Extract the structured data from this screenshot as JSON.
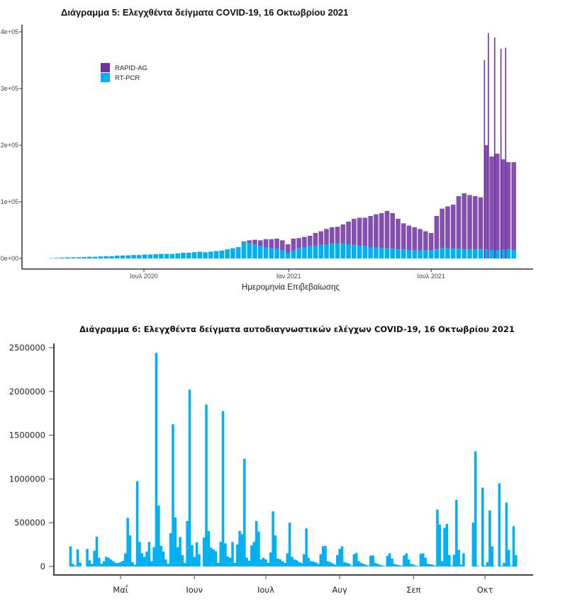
{
  "chart_data": [
    {
      "type": "bar",
      "stacked": true,
      "title": "Διάγραμμα 5: Ελεγχθέντα δείγματα COVID-19, 16 Οκτωβρίου 2021",
      "xlabel": "Ημερομηνία Επιβεβαίωσης",
      "ylabel": "",
      "ylim": [
        0,
        400000
      ],
      "yticks": [
        "0e+00",
        "1e+05",
        "2e+05",
        "3e+05",
        "4e+05"
      ],
      "ytick_values": [
        0,
        100000,
        200000,
        300000,
        400000
      ],
      "xticks": [
        "Ιουλ 2020",
        "Ιαν 2021",
        "Ιουλ 2021"
      ],
      "xtick_dates": [
        "2020-07-01",
        "2021-01-01",
        "2021-07-01"
      ],
      "legend_position": "top-left",
      "grid": false,
      "colors": {
        "RAPID-AG": "#7030a0",
        "RT-PCR": "#00b0f0",
        "axis": "#333333"
      },
      "x": [
        "2020-03-02",
        "2020-03-09",
        "2020-03-16",
        "2020-03-23",
        "2020-03-30",
        "2020-04-06",
        "2020-04-13",
        "2020-04-20",
        "2020-04-27",
        "2020-05-04",
        "2020-05-11",
        "2020-05-18",
        "2020-05-25",
        "2020-06-01",
        "2020-06-08",
        "2020-06-15",
        "2020-06-22",
        "2020-06-29",
        "2020-07-06",
        "2020-07-13",
        "2020-07-20",
        "2020-07-27",
        "2020-08-03",
        "2020-08-10",
        "2020-08-17",
        "2020-08-24",
        "2020-08-31",
        "2020-09-07",
        "2020-09-14",
        "2020-09-21",
        "2020-09-28",
        "2020-10-05",
        "2020-10-12",
        "2020-10-19",
        "2020-10-26",
        "2020-11-02",
        "2020-11-09",
        "2020-11-16",
        "2020-11-23",
        "2020-11-30",
        "2020-12-07",
        "2020-12-14",
        "2020-12-21",
        "2020-12-28",
        "2021-01-04",
        "2021-01-11",
        "2021-01-18",
        "2021-01-25",
        "2021-02-01",
        "2021-02-08",
        "2021-02-15",
        "2021-02-22",
        "2021-03-01",
        "2021-03-08",
        "2021-03-15",
        "2021-03-22",
        "2021-03-29",
        "2021-04-05",
        "2021-04-12",
        "2021-04-19",
        "2021-04-26",
        "2021-05-03",
        "2021-05-10",
        "2021-05-17",
        "2021-05-24",
        "2021-05-31",
        "2021-06-07",
        "2021-06-14",
        "2021-06-21",
        "2021-06-28",
        "2021-07-05",
        "2021-07-12",
        "2021-07-19",
        "2021-07-26",
        "2021-08-02",
        "2021-08-09",
        "2021-08-16",
        "2021-08-23",
        "2021-08-30",
        "2021-09-06",
        "2021-09-13",
        "2021-09-20",
        "2021-09-27",
        "2021-10-04",
        "2021-10-11"
      ],
      "series": [
        {
          "name": "RT-PCR",
          "values": [
            500,
            1000,
            1500,
            2000,
            2000,
            2000,
            2500,
            3000,
            3000,
            3500,
            4000,
            4000,
            5000,
            5000,
            5500,
            6000,
            6000,
            7000,
            7000,
            7500,
            8000,
            8000,
            8000,
            9000,
            10000,
            10000,
            11000,
            12000,
            11000,
            12000,
            13000,
            14000,
            16000,
            18000,
            20000,
            28000,
            27000,
            25000,
            22000,
            20000,
            18000,
            17000,
            15000,
            10000,
            14000,
            18000,
            20000,
            22000,
            22000,
            24000,
            25000,
            26000,
            27000,
            26000,
            25000,
            24000,
            22000,
            22000,
            20000,
            20000,
            18000,
            18000,
            17000,
            16000,
            16000,
            15000,
            14000,
            14000,
            15000,
            14000,
            16000,
            18000,
            18000,
            17000,
            17000,
            16000,
            16000,
            16000,
            16000,
            16000,
            15000,
            15000,
            16000,
            16000,
            15000
          ]
        },
        {
          "name": "RAPID-AG",
          "values": [
            0,
            0,
            0,
            0,
            0,
            0,
            0,
            0,
            0,
            0,
            0,
            0,
            0,
            0,
            0,
            0,
            0,
            0,
            0,
            0,
            0,
            0,
            0,
            0,
            0,
            0,
            0,
            0,
            0,
            0,
            0,
            0,
            0,
            0,
            0,
            2000,
            5000,
            8000,
            10000,
            14000,
            16000,
            18000,
            17000,
            15000,
            21000,
            18000,
            18000,
            18000,
            23000,
            24000,
            27000,
            29000,
            29000,
            34000,
            40000,
            46000,
            50000,
            50000,
            55000,
            58000,
            62000,
            66000,
            63000,
            54000,
            46000,
            43000,
            41000,
            38000,
            33000,
            31000,
            59000,
            70000,
            74000,
            78000,
            93000,
            99000,
            96000,
            94000,
            92000,
            184000,
            165000,
            170000,
            159000,
            154000,
            155000
          ]
        }
      ],
      "daily_peaks_total": [
        {
          "date": "2021-09-06",
          "value": 350000
        },
        {
          "date": "2021-09-11",
          "value": 398000
        },
        {
          "date": "2021-09-19",
          "value": 390000
        },
        {
          "date": "2021-09-27",
          "value": 370000
        },
        {
          "date": "2021-10-03",
          "value": 372000
        }
      ]
    },
    {
      "type": "bar",
      "title": "Διάγραμμα 6: Ελεγχθέντα δείγματα αυτοδιαγνωστικών ελέγχων COVID-19, 16 Οκτωβρίου 2021",
      "xlabel": "",
      "ylabel": "",
      "ylim": [
        0,
        2500000
      ],
      "yticks": [
        "0",
        "500000",
        "1000000",
        "1500000",
        "2000000",
        "2500000"
      ],
      "ytick_values": [
        0,
        500000,
        1000000,
        1500000,
        2000000,
        2500000
      ],
      "xticks": [
        "Μαΐ",
        "Ιουν",
        "Ιουλ",
        "Αυγ",
        "Σεπ",
        "Οκτ"
      ],
      "xtick_dates": [
        "2021-05-01",
        "2021-06-01",
        "2021-07-01",
        "2021-08-01",
        "2021-09-01",
        "2021-10-01"
      ],
      "grid": false,
      "colors": {
        "bar": "#00b0f0",
        "axis": "#444444"
      },
      "x": [
        "2021-04-10",
        "2021-04-11",
        "2021-04-12",
        "2021-04-13",
        "2021-04-14",
        "2021-04-15",
        "2021-04-16",
        "2021-04-17",
        "2021-04-18",
        "2021-04-19",
        "2021-04-20",
        "2021-04-21",
        "2021-04-22",
        "2021-04-23",
        "2021-04-24",
        "2021-04-25",
        "2021-04-26",
        "2021-04-27",
        "2021-04-28",
        "2021-04-29",
        "2021-04-30",
        "2021-05-01",
        "2021-05-02",
        "2021-05-03",
        "2021-05-04",
        "2021-05-05",
        "2021-05-06",
        "2021-05-07",
        "2021-05-08",
        "2021-05-09",
        "2021-05-10",
        "2021-05-11",
        "2021-05-12",
        "2021-05-13",
        "2021-05-14",
        "2021-05-15",
        "2021-05-16",
        "2021-05-17",
        "2021-05-18",
        "2021-05-19",
        "2021-05-20",
        "2021-05-21",
        "2021-05-22",
        "2021-05-23",
        "2021-05-24",
        "2021-05-25",
        "2021-05-26",
        "2021-05-27",
        "2021-05-28",
        "2021-05-29",
        "2021-05-30",
        "2021-05-31",
        "2021-06-01",
        "2021-06-02",
        "2021-06-03",
        "2021-06-04",
        "2021-06-05",
        "2021-06-06",
        "2021-06-07",
        "2021-06-08",
        "2021-06-09",
        "2021-06-10",
        "2021-06-11",
        "2021-06-12",
        "2021-06-13",
        "2021-06-14",
        "2021-06-15",
        "2021-06-16",
        "2021-06-17",
        "2021-06-18",
        "2021-06-19",
        "2021-06-20",
        "2021-06-21",
        "2021-06-22",
        "2021-06-23",
        "2021-06-24",
        "2021-06-25",
        "2021-06-26",
        "2021-06-27",
        "2021-06-28",
        "2021-06-29",
        "2021-06-30",
        "2021-07-01",
        "2021-07-02",
        "2021-07-03",
        "2021-07-04",
        "2021-07-05",
        "2021-07-06",
        "2021-07-07",
        "2021-07-08",
        "2021-07-09",
        "2021-07-10",
        "2021-07-11",
        "2021-07-12",
        "2021-07-13",
        "2021-07-14",
        "2021-07-15",
        "2021-07-16",
        "2021-07-17",
        "2021-07-18",
        "2021-07-19",
        "2021-07-20",
        "2021-07-21",
        "2021-07-22",
        "2021-07-23",
        "2021-07-24",
        "2021-07-25",
        "2021-07-26",
        "2021-07-27",
        "2021-07-28",
        "2021-07-29",
        "2021-07-30",
        "2021-07-31",
        "2021-08-01",
        "2021-08-02",
        "2021-08-03",
        "2021-08-04",
        "2021-08-05",
        "2021-08-06",
        "2021-08-07",
        "2021-08-08",
        "2021-08-09",
        "2021-08-10",
        "2021-08-11",
        "2021-08-12",
        "2021-08-13",
        "2021-08-14",
        "2021-08-15",
        "2021-08-16",
        "2021-08-17",
        "2021-08-18",
        "2021-08-19",
        "2021-08-20",
        "2021-08-21",
        "2021-08-22",
        "2021-08-23",
        "2021-08-24",
        "2021-08-25",
        "2021-08-26",
        "2021-08-27",
        "2021-08-28",
        "2021-08-29",
        "2021-08-30",
        "2021-08-31",
        "2021-09-01",
        "2021-09-02",
        "2021-09-03",
        "2021-09-04",
        "2021-09-05",
        "2021-09-06",
        "2021-09-07",
        "2021-09-08",
        "2021-09-09",
        "2021-09-10",
        "2021-09-11",
        "2021-09-12",
        "2021-09-13",
        "2021-09-14",
        "2021-09-15",
        "2021-09-16",
        "2021-09-17",
        "2021-09-18",
        "2021-09-19",
        "2021-09-20",
        "2021-09-21",
        "2021-09-22",
        "2021-09-23",
        "2021-09-24",
        "2021-09-25",
        "2021-09-26",
        "2021-09-27",
        "2021-09-28",
        "2021-09-29",
        "2021-09-30",
        "2021-10-01",
        "2021-10-02",
        "2021-10-03",
        "2021-10-04",
        "2021-10-05",
        "2021-10-06",
        "2021-10-07",
        "2021-10-08",
        "2021-10-09",
        "2021-10-10",
        "2021-10-11",
        "2021-10-12",
        "2021-10-13",
        "2021-10-14"
      ],
      "values": [
        230000,
        30000,
        10000,
        195000,
        45000,
        0,
        0,
        200000,
        70000,
        30000,
        180000,
        340000,
        100000,
        30000,
        60000,
        110000,
        100000,
        80000,
        60000,
        40000,
        40000,
        50000,
        65000,
        150000,
        555000,
        355000,
        50000,
        20000,
        975000,
        280000,
        150000,
        110000,
        170000,
        280000,
        60000,
        220000,
        2440000,
        695000,
        235000,
        170000,
        80000,
        30000,
        380000,
        1625000,
        560000,
        220000,
        335000,
        130000,
        40000,
        520000,
        2020000,
        245000,
        110000,
        275000,
        140000,
        0,
        330000,
        1850000,
        405000,
        215000,
        195000,
        175000,
        40000,
        280000,
        1775000,
        265000,
        115000,
        100000,
        280000,
        40000,
        250000,
        405000,
        370000,
        1230000,
        100000,
        65000,
        240000,
        280000,
        520000,
        400000,
        80000,
        100000,
        80000,
        40000,
        160000,
        630000,
        355000,
        90000,
        80000,
        60000,
        40000,
        150000,
        500000,
        110000,
        80000,
        70000,
        50000,
        40000,
        140000,
        435000,
        100000,
        60000,
        55000,
        45000,
        30000,
        140000,
        230000,
        235000,
        60000,
        50000,
        35000,
        20000,
        130000,
        200000,
        230000,
        50000,
        40000,
        30000,
        10000,
        140000,
        155000,
        60000,
        40000,
        30000,
        20000,
        10000,
        125000,
        125000,
        40000,
        30000,
        20000,
        10000,
        5000,
        120000,
        150000,
        90000,
        30000,
        20000,
        15000,
        10000,
        125000,
        150000,
        80000,
        30000,
        20000,
        10000,
        5000,
        145000,
        150000,
        100000,
        30000,
        25000,
        20000,
        10000,
        650000,
        480000,
        60000,
        440000,
        485000,
        130000,
        10000,
        135000,
        760000,
        190000,
        20000,
        150000,
        0,
        0,
        2000,
        500000,
        1315000,
        10000,
        0,
        900000,
        10000,
        50000,
        640000,
        230000,
        5000,
        0,
        950000,
        10000,
        40000,
        730000,
        190000,
        10000,
        460000,
        130000
      ]
    }
  ]
}
